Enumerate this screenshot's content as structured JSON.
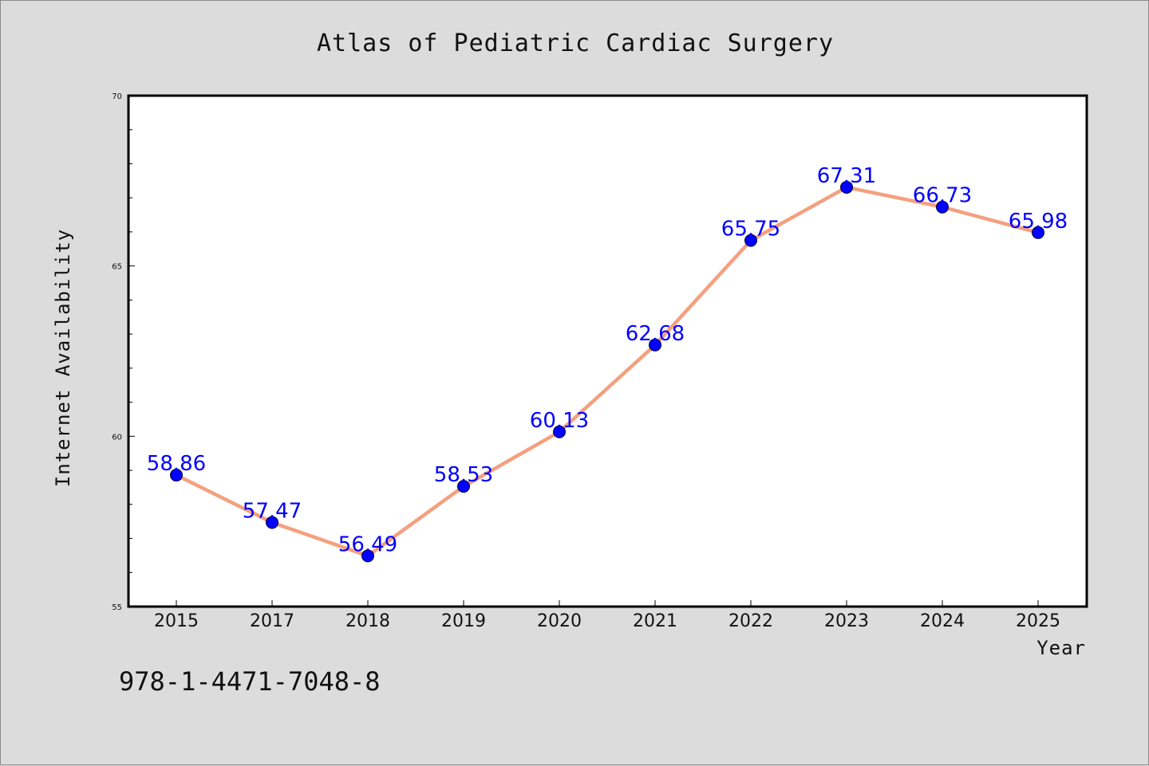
{
  "chart_data": {
    "type": "line",
    "title": "Atlas of Pediatric Cardiac Surgery",
    "xlabel": "Year",
    "ylabel": "Internet Availability",
    "categories": [
      "2015",
      "2017",
      "2018",
      "2019",
      "2020",
      "2021",
      "2022",
      "2023",
      "2024",
      "2025"
    ],
    "series": [
      {
        "values": [
          58.86,
          57.47,
          56.49,
          58.53,
          60.13,
          62.68,
          65.75,
          67.31,
          66.73,
          65.98
        ],
        "labels": [
          "58.86",
          "57.47",
          "56.49",
          "58.53",
          "60.13",
          "62.68",
          "65.75",
          "67.31",
          "66.73",
          "65.98"
        ]
      }
    ],
    "ylim": [
      55,
      70
    ],
    "yticks": [
      "55",
      "60",
      "65",
      "70"
    ],
    "grid": false,
    "line_color": "#f4a07f",
    "marker_color": "#0000ff",
    "label_color": "#0000ff",
    "background_color": "#dcdcdc",
    "plot_background": "#ffffff"
  },
  "footer": {
    "isbn": "978-1-4471-7048-8"
  }
}
